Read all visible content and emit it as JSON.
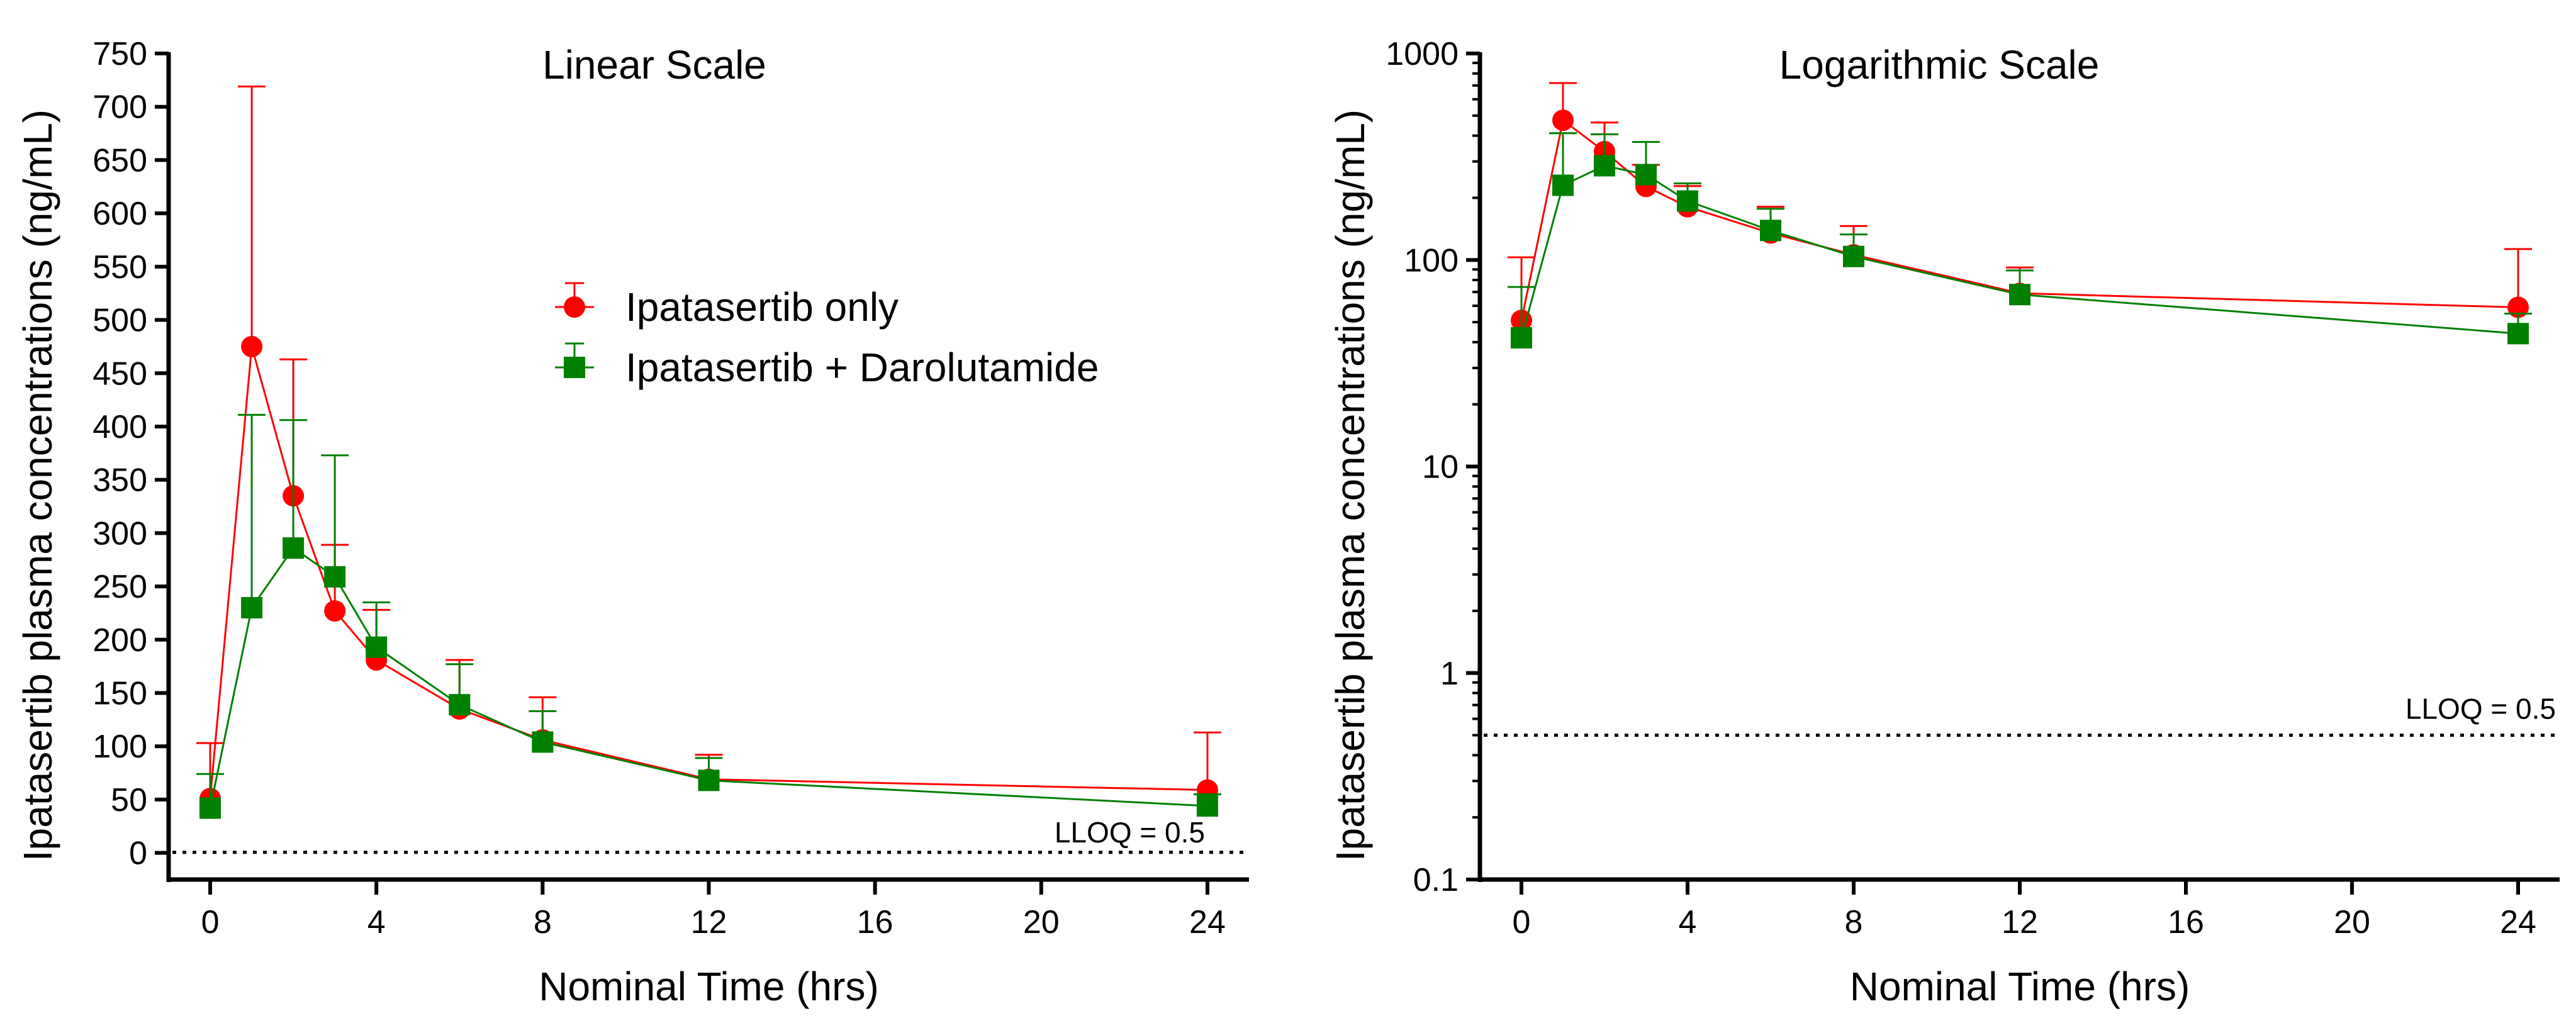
{
  "chart_data": [
    {
      "type": "line",
      "title": "Linear Scale",
      "xlabel": "Nominal Time (hrs)",
      "ylabel": "Ipatasertib plasma concentrations (ng/mL)",
      "x_ticks": [
        "0",
        "4",
        "8",
        "12",
        "16",
        "20",
        "24"
      ],
      "y_ticks": [
        "0",
        "50",
        "100",
        "150",
        "200",
        "250",
        "300",
        "350",
        "400",
        "450",
        "500",
        "550",
        "600",
        "650",
        "700",
        "750"
      ],
      "xlim": [
        -1,
        25
      ],
      "ylim": [
        -25,
        750
      ],
      "yscale": "linear",
      "lloq_value": 0.5,
      "lloq_label": "LLOQ = 0.5",
      "legend_position": "upper-center",
      "series": [
        {
          "name": "Ipatasertib only",
          "color": "#ff0000",
          "marker": "circle",
          "x": [
            0,
            1,
            2,
            3,
            4,
            6,
            8,
            12,
            24
          ],
          "y": [
            51,
            475,
            335,
            227,
            181,
            135,
            106,
            69,
            59
          ],
          "error_upper": [
            103,
            719,
            463,
            289,
            228,
            181,
            146,
            92,
            113
          ]
        },
        {
          "name": "Ipatasertib + Darolutamide",
          "color": "#008000",
          "marker": "square",
          "x": [
            0,
            1,
            2,
            3,
            4,
            6,
            8,
            12,
            24
          ],
          "y": [
            42,
            230,
            286,
            259,
            193,
            139,
            104,
            68,
            44
          ],
          "error_upper": [
            74,
            411,
            406,
            373,
            235,
            177,
            133,
            89,
            55
          ]
        }
      ]
    },
    {
      "type": "line",
      "title": "Logarithmic Scale",
      "xlabel": "Nominal Time (hrs)",
      "ylabel": "Ipatasertib plasma concentrations (ng/mL)",
      "x_ticks": [
        "0",
        "4",
        "8",
        "12",
        "16",
        "20",
        "24"
      ],
      "y_ticks": [
        "0.1",
        "1",
        "10",
        "100",
        "1000"
      ],
      "xlim": [
        -1,
        25
      ],
      "ylim": [
        0.1,
        1000
      ],
      "yscale": "log",
      "lloq_value": 0.5,
      "lloq_label": "LLOQ = 0.5",
      "series": [
        {
          "name": "Ipatasertib only",
          "color": "#ff0000",
          "marker": "circle",
          "x": [
            0,
            1,
            2,
            3,
            4,
            6,
            8,
            12,
            24
          ],
          "y": [
            51,
            475,
            335,
            227,
            181,
            135,
            106,
            69,
            59
          ],
          "error_upper": [
            103,
            719,
            463,
            289,
            228,
            181,
            146,
            92,
            113
          ]
        },
        {
          "name": "Ipatasertib + Darolutamide",
          "color": "#008000",
          "marker": "square",
          "x": [
            0,
            1,
            2,
            3,
            4,
            6,
            8,
            12,
            24
          ],
          "y": [
            42,
            230,
            286,
            259,
            193,
            139,
            104,
            68,
            44
          ],
          "error_upper": [
            74,
            411,
            406,
            373,
            235,
            177,
            133,
            89,
            55
          ]
        }
      ]
    }
  ]
}
